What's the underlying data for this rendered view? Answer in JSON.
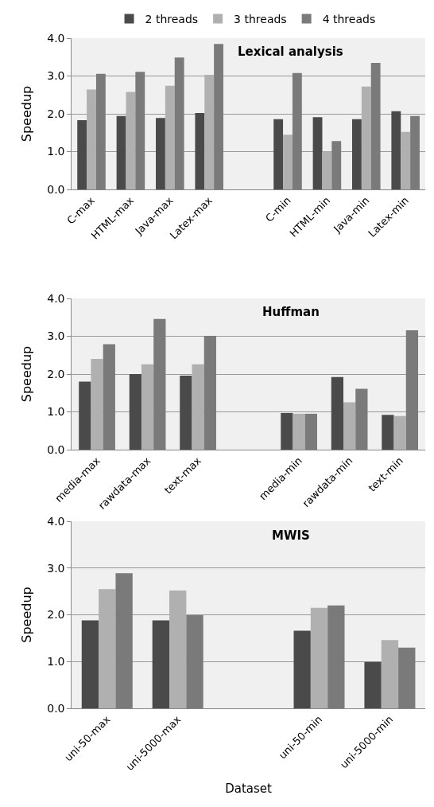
{
  "chart_data": [
    {
      "type": "bar",
      "title": "Lexical analysis",
      "ylabel": "Speedup",
      "categories": [
        "C-max",
        "HTML-max",
        "Java-max",
        "Latex-max",
        null,
        "C-min",
        "HTML-min",
        "Java-min",
        "Latex-min"
      ],
      "series": [
        {
          "name": "2 threads",
          "color": "#4a4a4a",
          "values": [
            1.83,
            1.94,
            1.89,
            2.02,
            null,
            1.86,
            1.91,
            1.86,
            2.07
          ]
        },
        {
          "name": "3 threads",
          "color": "#b0b0b0",
          "values": [
            2.64,
            2.58,
            2.74,
            3.03,
            null,
            1.45,
            1.0,
            2.72,
            1.52
          ]
        },
        {
          "name": "4 threads",
          "color": "#7a7a7a",
          "values": [
            3.06,
            3.11,
            3.49,
            3.85,
            null,
            3.08,
            1.28,
            3.35,
            1.94
          ]
        }
      ],
      "ylim": [
        0,
        4
      ],
      "yticks": [
        {
          "value": 0,
          "label": "0.0"
        },
        {
          "value": 1,
          "label": "1.0"
        },
        {
          "value": 2,
          "label": "2.0"
        },
        {
          "value": 3,
          "label": "3.0"
        },
        {
          "value": 4,
          "label": "4.0"
        }
      ],
      "grid": "y",
      "legend": "top"
    },
    {
      "type": "bar",
      "title": "Huffman",
      "ylabel": "Speedup",
      "categories": [
        "media-max",
        "rawdata-max",
        "text-max",
        null,
        "media-min",
        "rawdata-min",
        "text-min"
      ],
      "series": [
        {
          "color": "#4a4a4a",
          "values": [
            1.8,
            2.0,
            1.96,
            null,
            0.97,
            1.92,
            0.92
          ]
        },
        {
          "color": "#b0b0b0",
          "values": [
            2.4,
            2.26,
            2.26,
            null,
            0.95,
            1.25,
            0.89
          ]
        },
        {
          "color": "#7a7a7a",
          "values": [
            2.79,
            3.46,
            3.01,
            null,
            0.95,
            1.61,
            3.16
          ]
        }
      ],
      "ylim": [
        0,
        4
      ],
      "yticks": [
        {
          "value": 0,
          "label": "0.0"
        },
        {
          "value": 1,
          "label": "1.0"
        },
        {
          "value": 2,
          "label": "2.0"
        },
        {
          "value": 3,
          "label": "3.0"
        },
        {
          "value": 4,
          "label": "4.0"
        }
      ],
      "grid": "y"
    },
    {
      "type": "bar",
      "title": "MWIS",
      "ylabel": "Speedup",
      "xlabel": "Dataset",
      "categories": [
        "uni-50-max",
        "uni-5000-max",
        null,
        "uni-50-min",
        "uni-5000-min"
      ],
      "series": [
        {
          "color": "#4a4a4a",
          "values": [
            1.88,
            1.88,
            null,
            1.66,
            0.99
          ]
        },
        {
          "color": "#b0b0b0",
          "values": [
            2.55,
            2.52,
            null,
            2.15,
            1.46
          ]
        },
        {
          "color": "#7a7a7a",
          "values": [
            2.89,
            1.99,
            null,
            2.2,
            1.3
          ]
        }
      ],
      "ylim": [
        0,
        4
      ],
      "yticks": [
        {
          "value": 0,
          "label": "0.0"
        },
        {
          "value": 1,
          "label": "1.0"
        },
        {
          "value": 2,
          "label": "2.0"
        },
        {
          "value": 3,
          "label": "3.0"
        },
        {
          "value": 4,
          "label": "4.0"
        }
      ],
      "grid": "y"
    }
  ]
}
